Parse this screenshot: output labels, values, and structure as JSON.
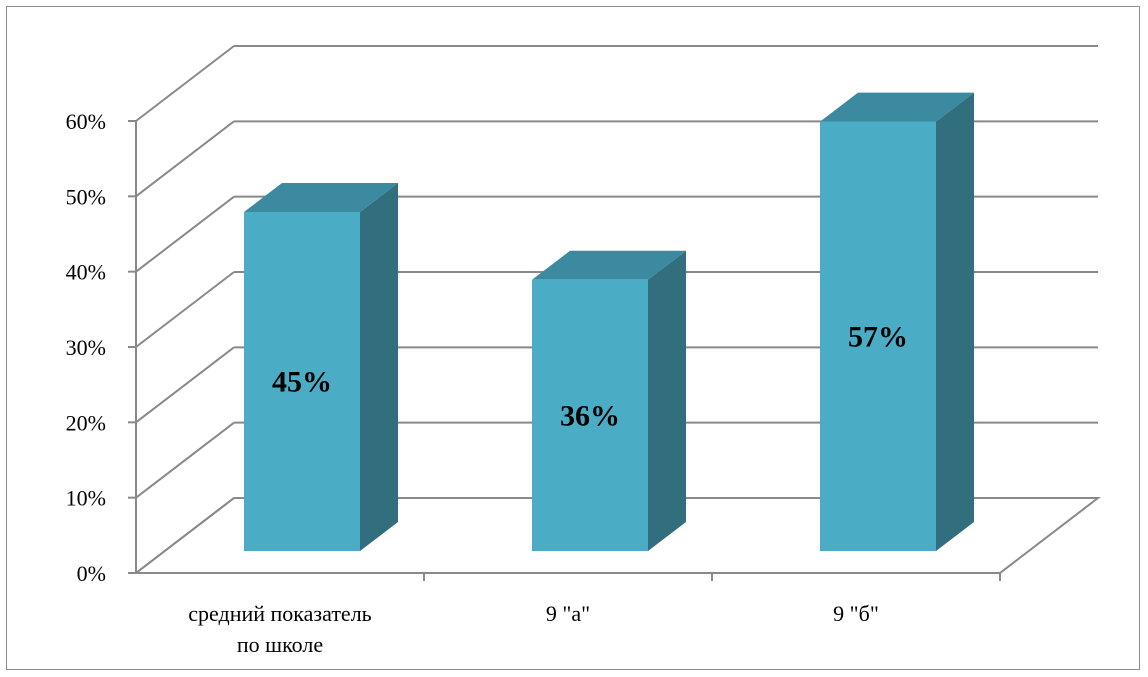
{
  "chart_data": {
    "type": "bar",
    "title": "",
    "xlabel": "",
    "ylabel": "",
    "categories": [
      "средний показатель по школе",
      "9 \"а\"",
      "9 \"б\""
    ],
    "category_label_lines": [
      [
        "средний показатель",
        "по школе"
      ],
      [
        "9 \"а\""
      ],
      [
        "9 \"б\""
      ]
    ],
    "values": [
      45,
      36,
      57
    ],
    "data_labels": [
      "45%",
      "36%",
      "57%"
    ],
    "ylim": [
      0,
      60
    ],
    "yticks": [
      0,
      10,
      20,
      30,
      40,
      50,
      60
    ],
    "ytick_labels": [
      "0%",
      "10%",
      "20%",
      "30%",
      "40%",
      "50%",
      "60%"
    ],
    "style": "3d-column",
    "grid": true,
    "legend": false,
    "colors": {
      "bar_front": "#4bacc6",
      "bar_side": "#316e7e",
      "bar_top": "#3b8aa0",
      "gridline": "#898989"
    }
  }
}
